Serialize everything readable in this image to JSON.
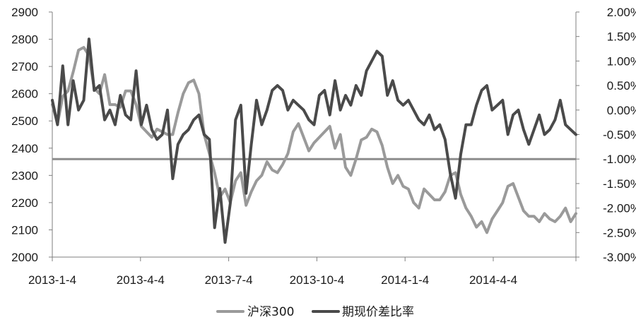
{
  "chart_data": {
    "type": "line",
    "title": "",
    "xlabel": "",
    "ylabel_left": "",
    "ylabel_right": "",
    "grid": false,
    "legend_position": "bottom",
    "x_tick_labels": [
      "2013-1-4",
      "2013-4-4",
      "2013-7-4",
      "2013-10-4",
      "2014-1-4",
      "2014-4-4"
    ],
    "left_axis": {
      "ylim": [
        2000,
        2900
      ],
      "ticks": [
        2000,
        2100,
        2200,
        2300,
        2400,
        2500,
        2600,
        2700,
        2800,
        2900
      ],
      "tick_labels": [
        "2000",
        "2100",
        "2200",
        "2300",
        "2400",
        "2500",
        "2600",
        "2700",
        "2800",
        "2900"
      ]
    },
    "right_axis": {
      "ylim": [
        -3.0,
        2.0
      ],
      "ticks": [
        -3.0,
        -2.5,
        -2.0,
        -1.5,
        -1.0,
        -0.5,
        0.0,
        0.5,
        1.0,
        1.5,
        2.0
      ],
      "tick_labels": [
        "-3.00%",
        "-2.50%",
        "-2.00%",
        "-1.50%",
        "-1.00%",
        "-0.50%",
        "0.00%",
        "0.50%",
        "1.00%",
        "1.50%",
        "2.00%"
      ]
    },
    "reference_line": {
      "axis": "right",
      "value": -1.0,
      "color": "#8c8c8c"
    },
    "series": [
      {
        "name": "沪深300",
        "axis": "left",
        "color": "#9a9a9a",
        "x_fraction": [
          0.0,
          0.01,
          0.02,
          0.03,
          0.04,
          0.05,
          0.06,
          0.07,
          0.08,
          0.09,
          0.1,
          0.11,
          0.12,
          0.13,
          0.14,
          0.15,
          0.16,
          0.17,
          0.18,
          0.19,
          0.2,
          0.21,
          0.22,
          0.23,
          0.24,
          0.25,
          0.26,
          0.27,
          0.28,
          0.29,
          0.3,
          0.31,
          0.32,
          0.33,
          0.34,
          0.35,
          0.36,
          0.37,
          0.38,
          0.39,
          0.4,
          0.41,
          0.42,
          0.43,
          0.44,
          0.45,
          0.46,
          0.47,
          0.48,
          0.49,
          0.5,
          0.51,
          0.52,
          0.53,
          0.54,
          0.55,
          0.56,
          0.57,
          0.58,
          0.59,
          0.6,
          0.61,
          0.62,
          0.63,
          0.64,
          0.65,
          0.66,
          0.67,
          0.68,
          0.69,
          0.7,
          0.71,
          0.72,
          0.73,
          0.74,
          0.75,
          0.76,
          0.77,
          0.78,
          0.79,
          0.8,
          0.81,
          0.82,
          0.83,
          0.84,
          0.85,
          0.86,
          0.87,
          0.88,
          0.89,
          0.9,
          0.91,
          0.92,
          0.93,
          0.94,
          0.95,
          0.96,
          0.97,
          0.98,
          0.99,
          1.0
        ],
        "values": [
          2560,
          2490,
          2590,
          2610,
          2680,
          2760,
          2770,
          2740,
          2620,
          2600,
          2670,
          2560,
          2560,
          2550,
          2610,
          2610,
          2560,
          2480,
          2460,
          2440,
          2470,
          2460,
          2450,
          2450,
          2530,
          2600,
          2640,
          2650,
          2600,
          2450,
          2380,
          2310,
          2220,
          2250,
          2200,
          2280,
          2310,
          2190,
          2240,
          2280,
          2300,
          2350,
          2320,
          2310,
          2340,
          2380,
          2460,
          2490,
          2440,
          2390,
          2420,
          2440,
          2460,
          2480,
          2400,
          2450,
          2330,
          2300,
          2360,
          2430,
          2440,
          2470,
          2460,
          2410,
          2330,
          2270,
          2300,
          2260,
          2250,
          2200,
          2180,
          2250,
          2230,
          2210,
          2210,
          2240,
          2300,
          2310,
          2230,
          2180,
          2150,
          2110,
          2130,
          2090,
          2140,
          2170,
          2200,
          2260,
          2270,
          2220,
          2170,
          2150,
          2150,
          2130,
          2160,
          2140,
          2130,
          2150,
          2180,
          2130,
          2160
        ]
      },
      {
        "name": "期现价差比率",
        "axis": "right",
        "color": "#4a4a4a",
        "x_fraction": [
          0.0,
          0.01,
          0.02,
          0.03,
          0.04,
          0.05,
          0.06,
          0.07,
          0.08,
          0.09,
          0.1,
          0.11,
          0.12,
          0.13,
          0.14,
          0.15,
          0.16,
          0.17,
          0.18,
          0.19,
          0.2,
          0.21,
          0.22,
          0.23,
          0.24,
          0.25,
          0.26,
          0.27,
          0.28,
          0.29,
          0.3,
          0.31,
          0.32,
          0.33,
          0.34,
          0.35,
          0.36,
          0.37,
          0.38,
          0.39,
          0.4,
          0.41,
          0.42,
          0.43,
          0.44,
          0.45,
          0.46,
          0.47,
          0.48,
          0.49,
          0.5,
          0.51,
          0.52,
          0.53,
          0.54,
          0.55,
          0.56,
          0.57,
          0.58,
          0.59,
          0.6,
          0.61,
          0.62,
          0.63,
          0.64,
          0.65,
          0.66,
          0.67,
          0.68,
          0.69,
          0.7,
          0.71,
          0.72,
          0.73,
          0.74,
          0.75,
          0.76,
          0.77,
          0.78,
          0.79,
          0.8,
          0.81,
          0.82,
          0.83,
          0.84,
          0.85,
          0.86,
          0.87,
          0.88,
          0.89,
          0.9,
          0.91,
          0.92,
          0.93,
          0.94,
          0.95,
          0.96,
          0.97,
          0.98,
          0.99,
          1.0
        ],
        "values": [
          0.2,
          -0.3,
          0.9,
          -0.3,
          0.6,
          0.0,
          0.2,
          1.45,
          0.4,
          0.5,
          -0.2,
          0.0,
          -0.3,
          0.3,
          -0.1,
          -0.2,
          0.8,
          -0.3,
          0.1,
          -0.4,
          -0.6,
          -0.5,
          0.0,
          -1.4,
          -0.7,
          -0.5,
          -0.4,
          -0.2,
          -0.1,
          -0.5,
          -0.6,
          -2.4,
          -1.6,
          -2.7,
          -1.9,
          -0.2,
          0.1,
          -1.7,
          -0.7,
          0.2,
          -0.3,
          0.0,
          0.4,
          0.5,
          0.4,
          0.0,
          0.2,
          0.1,
          0.0,
          -0.2,
          -0.3,
          0.3,
          0.4,
          -0.1,
          0.6,
          0.0,
          0.3,
          0.1,
          0.5,
          0.3,
          0.8,
          1.0,
          1.2,
          1.1,
          0.3,
          0.6,
          0.2,
          0.1,
          0.2,
          0.0,
          -0.2,
          -0.3,
          -0.1,
          -0.4,
          -0.3,
          -0.6,
          -1.3,
          -1.8,
          -0.9,
          -0.3,
          -0.3,
          0.1,
          0.4,
          0.5,
          0.0,
          0.1,
          0.2,
          -0.5,
          -0.1,
          0.0,
          -0.4,
          -0.7,
          -0.4,
          -0.1,
          -0.5,
          -0.4,
          -0.2,
          0.2,
          -0.3,
          -0.4,
          -0.5
        ]
      }
    ]
  },
  "legend": {
    "items": [
      {
        "label": "沪深300",
        "color": "#9a9a9a"
      },
      {
        "label": "期现价差比率",
        "color": "#4a4a4a"
      }
    ]
  }
}
